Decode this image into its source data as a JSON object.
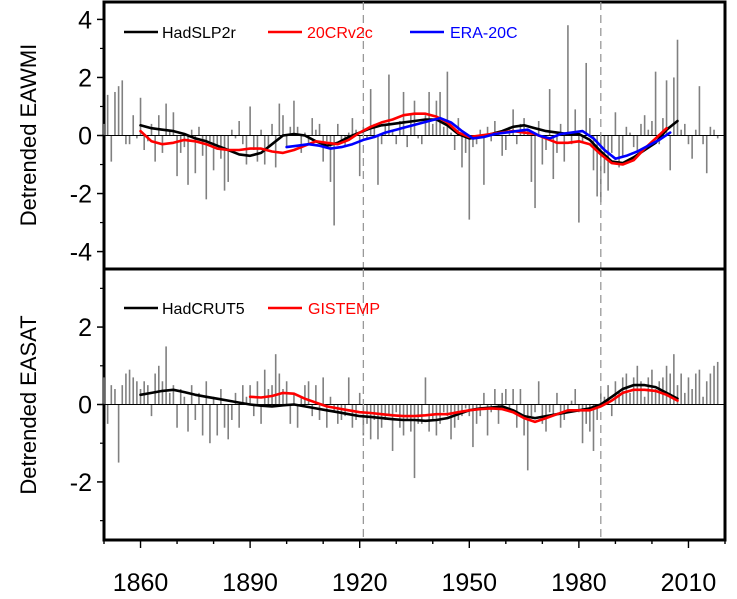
{
  "chart_data": [
    {
      "type": "line",
      "panel": "top",
      "ylabel": "Detrended EAWMI",
      "ylim": [
        -4.6,
        4.6
      ],
      "yticks": [
        -4,
        -2,
        0,
        2,
        4
      ],
      "xlim": [
        1850,
        2020
      ],
      "vlines": [
        1921,
        1986
      ],
      "legend": [
        {
          "name": "HadSLP2r",
          "color": "#000000"
        },
        {
          "name": "20CRv2c",
          "color": "#ff0000"
        },
        {
          "name": "ERA-20C",
          "color": "#0000ff"
        }
      ],
      "bars": {
        "start_year": 1850,
        "color": "#808080",
        "values": [
          0.4,
          1.4,
          -0.9,
          1.5,
          1.7,
          1.9,
          -0.3,
          -0.3,
          0.7,
          -0.1,
          1.3,
          -0.5,
          -0.2,
          0.4,
          -0.9,
          0.7,
          -0.6,
          1.1,
          0.2,
          0.8,
          -1.4,
          -0.6,
          -0.4,
          -1.7,
          0.2,
          -1.3,
          0.3,
          -0.7,
          -2.2,
          -0.2,
          -1.2,
          -0.4,
          -0.8,
          -1.9,
          -1.6,
          0.2,
          -0.1,
          0.5,
          -0.3,
          -1.0,
          1.0,
          -0.5,
          -0.9,
          0.2,
          -1.0,
          -0.4,
          0.4,
          -1.1,
          1.1,
          0.7,
          -0.4,
          0.3,
          1.2,
          0.3,
          -0.6,
          0.1,
          -0.3,
          0.6,
          0.2,
          0.4,
          -0.9,
          -0.2,
          -1.6,
          -3.1,
          0.4,
          -0.2,
          -0.4,
          0.1,
          0.6,
          0.2,
          -1.4,
          0.3,
          -0.1,
          1.6,
          0.4,
          -1.7,
          -0.3,
          0.4,
          2.1,
          0.2,
          -0.3,
          0.5,
          1.5,
          -0.4,
          0.7,
          1.2,
          -0.1,
          -0.3,
          0.7,
          1.5,
          0.4,
          1.2,
          1.5,
          0.3,
          2.2,
          0.1,
          -0.5,
          0.6,
          -1.1,
          -0.6,
          -2.9,
          -0.4,
          -0.3,
          0.2,
          -1.7,
          0.3,
          -0.2,
          0.5,
          0.1,
          -0.7,
          -0.5,
          0.3,
          0.9,
          -0.3,
          0.4,
          0.6,
          0.2,
          -1.6,
          -2.5,
          0.5,
          -1.0,
          -0.5,
          1.6,
          -1.5,
          -0.6,
          0.4,
          -0.9,
          3.8,
          -0.3,
          0.9,
          -3.0,
          -0.2,
          2.5,
          0.6,
          -1.2,
          -2.1,
          -2.3,
          -1.3,
          -1.9,
          -0.6,
          0.8,
          -1.1,
          -0.7,
          0.3,
          0.1,
          -0.4,
          -0.6,
          0.4,
          0.7,
          0.2,
          0.5,
          2.2,
          -0.3,
          0.6,
          1.9,
          -1.2,
          2.0,
          3.3,
          0.2,
          0.4,
          -0.3,
          -0.8,
          0.2,
          1.7,
          -0.3,
          -1.3,
          0.3,
          0.2,
          -0.1
        ]
      },
      "series": [
        {
          "name": "HadSLP2r",
          "color": "#000000",
          "x": [
            1860,
            1863,
            1866,
            1869,
            1872,
            1875,
            1878,
            1881,
            1884,
            1887,
            1890,
            1893,
            1896,
            1899,
            1902,
            1905,
            1908,
            1911,
            1914,
            1917,
            1920,
            1923,
            1926,
            1929,
            1932,
            1935,
            1938,
            1941,
            1944,
            1947,
            1950,
            1953,
            1956,
            1959,
            1962,
            1965,
            1968,
            1971,
            1974,
            1977,
            1980,
            1983,
            1986,
            1989,
            1992,
            1995,
            1998,
            2001,
            2004,
            2007
          ],
          "y": [
            0.35,
            0.25,
            0.2,
            0.15,
            0.05,
            -0.1,
            -0.2,
            -0.35,
            -0.5,
            -0.65,
            -0.7,
            -0.6,
            -0.3,
            0.0,
            0.05,
            0.0,
            -0.2,
            -0.35,
            -0.25,
            -0.05,
            0.1,
            0.25,
            0.35,
            0.4,
            0.45,
            0.5,
            0.55,
            0.55,
            0.35,
            0.05,
            -0.1,
            -0.05,
            0.05,
            0.15,
            0.3,
            0.35,
            0.25,
            0.15,
            0.1,
            0.05,
            0.05,
            -0.15,
            -0.55,
            -0.9,
            -0.95,
            -0.75,
            -0.5,
            -0.25,
            0.2,
            0.5
          ]
        },
        {
          "name": "20CRv2c",
          "color": "#ff0000",
          "x": [
            1860,
            1863,
            1866,
            1869,
            1872,
            1875,
            1878,
            1881,
            1884,
            1887,
            1890,
            1893,
            1896,
            1899,
            1902,
            1905,
            1908,
            1911,
            1914,
            1917,
            1920,
            1923,
            1926,
            1929,
            1932,
            1935,
            1938,
            1941,
            1944,
            1947,
            1950,
            1953,
            1956,
            1959,
            1962,
            1965,
            1968,
            1971,
            1974,
            1977,
            1980,
            1983,
            1986,
            1989,
            1992,
            1995,
            1998,
            2001,
            2004
          ],
          "y": [
            0.15,
            -0.2,
            -0.3,
            -0.25,
            -0.15,
            -0.2,
            -0.3,
            -0.45,
            -0.5,
            -0.5,
            -0.45,
            -0.45,
            -0.55,
            -0.6,
            -0.5,
            -0.35,
            -0.2,
            -0.25,
            -0.3,
            -0.15,
            0.1,
            0.3,
            0.45,
            0.55,
            0.7,
            0.75,
            0.75,
            0.65,
            0.45,
            0.1,
            -0.05,
            0.0,
            0.05,
            0.1,
            0.15,
            0.1,
            0.05,
            -0.1,
            -0.25,
            -0.25,
            -0.2,
            -0.3,
            -0.65,
            -0.95,
            -1.0,
            -0.85,
            -0.45,
            -0.1,
            0.25
          ]
        },
        {
          "name": "ERA-20C",
          "color": "#0000ff",
          "x": [
            1900,
            1903,
            1906,
            1909,
            1912,
            1915,
            1918,
            1921,
            1924,
            1927,
            1930,
            1933,
            1936,
            1939,
            1942,
            1945,
            1948,
            1951,
            1954,
            1957,
            1960,
            1963,
            1966,
            1969,
            1972,
            1975,
            1978,
            1981,
            1984,
            1987,
            1990,
            1993,
            1996,
            1999,
            2002,
            2005
          ],
          "y": [
            -0.4,
            -0.35,
            -0.3,
            -0.35,
            -0.45,
            -0.4,
            -0.3,
            -0.15,
            -0.05,
            0.1,
            0.2,
            0.3,
            0.4,
            0.5,
            0.6,
            0.45,
            0.15,
            -0.1,
            -0.05,
            0.05,
            0.1,
            0.15,
            0.2,
            0.0,
            -0.1,
            0.05,
            0.1,
            0.15,
            -0.1,
            -0.5,
            -0.8,
            -0.7,
            -0.55,
            -0.35,
            -0.15,
            0.1
          ]
        }
      ]
    },
    {
      "type": "line",
      "panel": "bottom",
      "ylabel": "Detrended EASAT",
      "xlabel": "",
      "ylim": [
        -3.5,
        3.5
      ],
      "yticks": [
        -2,
        0,
        2
      ],
      "xlim": [
        1850,
        2020
      ],
      "xticks": [
        1860,
        1890,
        1920,
        1950,
        1980,
        2010
      ],
      "vlines": [
        1921,
        1986
      ],
      "legend": [
        {
          "name": "HadCRUT5",
          "color": "#000000"
        },
        {
          "name": "GISTEMP",
          "color": "#ff0000"
        }
      ],
      "bars": {
        "start_year": 1850,
        "color": "#808080",
        "values": [
          0.7,
          -0.5,
          0.5,
          0.4,
          -1.5,
          0.5,
          0.8,
          0.9,
          0.7,
          0.6,
          0.4,
          0.6,
          0.5,
          -0.3,
          0.8,
          1.0,
          0.6,
          1.5,
          0.3,
          0.5,
          -0.6,
          0.4,
          0.2,
          -0.7,
          0.5,
          -0.4,
          0.3,
          -0.8,
          0.6,
          -1.0,
          0.2,
          -0.8,
          0.4,
          -0.6,
          -0.9,
          -0.4,
          0.3,
          -0.6,
          0.5,
          0.2,
          0.5,
          -0.3,
          0.6,
          -0.5,
          0.9,
          0.4,
          0.5,
          1.3,
          0.8,
          0.4,
          0.6,
          -0.5,
          0.3,
          -0.6,
          0.2,
          0.5,
          0.6,
          -0.3,
          0.5,
          -0.4,
          0.7,
          -0.6,
          0.2,
          -0.2,
          -0.5,
          -0.4,
          -0.3,
          0.7,
          -0.6,
          -0.4,
          0.3,
          -0.8,
          -0.5,
          -0.9,
          -0.4,
          -0.9,
          -0.6,
          -0.4,
          -0.3,
          -1.2,
          -0.2,
          -0.6,
          -0.8,
          -0.4,
          -0.7,
          -1.9,
          -0.5,
          -0.5,
          0.7,
          -0.7,
          -0.4,
          -0.8,
          -0.5,
          -0.2,
          -0.3,
          -0.9,
          -0.6,
          -0.4,
          -0.3,
          -0.1,
          -0.3,
          -1.1,
          -0.5,
          -0.3,
          0.3,
          -0.8,
          -0.2,
          0.4,
          -0.5,
          0.3,
          0.4,
          -0.2,
          0.4,
          -0.6,
          0.4,
          -0.8,
          -1.7,
          -0.3,
          -0.2,
          0.6,
          -0.5,
          -0.7,
          -0.2,
          -0.3,
          0.3,
          -0.6,
          -0.4,
          -0.2,
          0.1,
          0.4,
          -0.2,
          -1.0,
          -0.5,
          -0.7,
          -1.2,
          -0.4,
          0.3,
          0.2,
          0.5,
          -0.3,
          0.6,
          0.3,
          0.7,
          0.8,
          0.3,
          0.7,
          1.0,
          0.6,
          0.2,
          0.7,
          0.9,
          0.4,
          0.6,
          0.7,
          1.0,
          0.8,
          1.3,
          0.5,
          0.8,
          0.3,
          0.7,
          0.4,
          0.8,
          0.9,
          0.2,
          0.6,
          0.8,
          1.0,
          1.1
        ]
      },
      "series": [
        {
          "name": "HadCRUT5",
          "color": "#000000",
          "x": [
            1860,
            1863,
            1866,
            1869,
            1872,
            1875,
            1878,
            1881,
            1884,
            1887,
            1890,
            1893,
            1896,
            1899,
            1902,
            1905,
            1908,
            1911,
            1914,
            1917,
            1920,
            1923,
            1926,
            1929,
            1932,
            1935,
            1938,
            1941,
            1944,
            1947,
            1950,
            1953,
            1956,
            1959,
            1962,
            1965,
            1968,
            1971,
            1974,
            1977,
            1980,
            1983,
            1986,
            1989,
            1992,
            1995,
            1998,
            2001,
            2004,
            2007
          ],
          "y": [
            0.25,
            0.3,
            0.35,
            0.38,
            0.32,
            0.25,
            0.2,
            0.15,
            0.1,
            0.05,
            0.0,
            -0.03,
            -0.05,
            -0.02,
            0.0,
            -0.05,
            -0.1,
            -0.15,
            -0.2,
            -0.25,
            -0.3,
            -0.32,
            -0.35,
            -0.38,
            -0.4,
            -0.4,
            -0.42,
            -0.4,
            -0.35,
            -0.25,
            -0.15,
            -0.1,
            -0.08,
            -0.05,
            -0.15,
            -0.3,
            -0.35,
            -0.3,
            -0.25,
            -0.2,
            -0.15,
            -0.1,
            0.0,
            0.2,
            0.4,
            0.5,
            0.5,
            0.45,
            0.3,
            0.15
          ]
        },
        {
          "name": "GISTEMP",
          "color": "#ff0000",
          "x": [
            1890,
            1893,
            1896,
            1899,
            1902,
            1905,
            1908,
            1911,
            1914,
            1917,
            1920,
            1923,
            1926,
            1929,
            1932,
            1935,
            1938,
            1941,
            1944,
            1947,
            1950,
            1953,
            1956,
            1959,
            1962,
            1965,
            1968,
            1971,
            1974,
            1977,
            1980,
            1983,
            1986,
            1989,
            1992,
            1995,
            1998,
            2001,
            2004,
            2007
          ],
          "y": [
            0.2,
            0.18,
            0.22,
            0.3,
            0.28,
            0.15,
            0.05,
            -0.05,
            -0.1,
            -0.15,
            -0.2,
            -0.22,
            -0.25,
            -0.28,
            -0.3,
            -0.3,
            -0.28,
            -0.25,
            -0.25,
            -0.2,
            -0.15,
            -0.12,
            -0.1,
            -0.12,
            -0.2,
            -0.35,
            -0.45,
            -0.35,
            -0.25,
            -0.15,
            -0.15,
            -0.15,
            -0.05,
            0.1,
            0.3,
            0.38,
            0.38,
            0.35,
            0.25,
            0.1
          ]
        }
      ]
    }
  ]
}
